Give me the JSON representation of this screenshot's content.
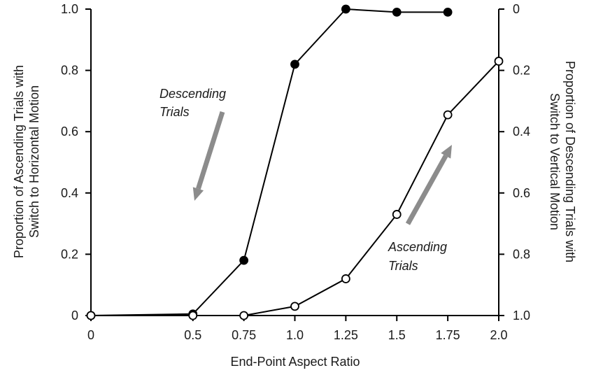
{
  "chart_data": {
    "type": "line",
    "xlabel": "End-Point Aspect Ratio",
    "ylabel_left": [
      "Proportion of Ascending Trials with",
      "Switch to Horizontal Motion"
    ],
    "ylabel_right": [
      "Proportion of Descending Trials with",
      "Switch to Vertical Motion"
    ],
    "xlim": [
      0,
      2.0
    ],
    "ylim_left": [
      0,
      1.0
    ],
    "ylim_right": [
      1.0,
      0
    ],
    "x_ticks": [
      0,
      0.5,
      0.75,
      1.0,
      1.25,
      1.5,
      1.75,
      2.0
    ],
    "x_tick_labels": [
      "0",
      "0.5",
      "0.75",
      "1.0",
      "1.25",
      "1.5",
      "1.75",
      "2.0"
    ],
    "y_left_ticks": [
      0,
      0.2,
      0.4,
      0.6,
      0.8,
      1.0
    ],
    "y_left_tick_labels": [
      "0",
      "0.2",
      "0.4",
      "0.6",
      "0.8",
      "1.0"
    ],
    "y_right_ticks": [
      0,
      0.2,
      0.4,
      0.6,
      0.8,
      1.0
    ],
    "y_right_tick_labels": [
      "0",
      "0.2",
      "0.4",
      "0.6",
      "0.8",
      "1.0"
    ],
    "grid": false,
    "series": [
      {
        "marker": "filled-circle",
        "x": [
          0,
          0.5,
          0.75,
          1.0,
          1.25,
          1.5,
          1.75
        ],
        "y": [
          0.0,
          0.005,
          0.18,
          0.82,
          1.0,
          0.99,
          0.99
        ]
      },
      {
        "marker": "open-circle",
        "x": [
          0,
          0.5,
          0.75,
          1.0,
          1.25,
          1.5,
          1.75,
          2.0
        ],
        "y": [
          0.0,
          0.0,
          0.0,
          0.03,
          0.12,
          0.33,
          0.655,
          0.83
        ]
      }
    ],
    "annotations": [
      {
        "lines": [
          "Descending",
          "Trials"
        ],
        "arrow": "down"
      },
      {
        "lines": [
          "Ascending",
          "Trials"
        ],
        "arrow": "up"
      }
    ],
    "colors": {
      "line": "#000000",
      "arrow": "#8c8c8c"
    }
  }
}
